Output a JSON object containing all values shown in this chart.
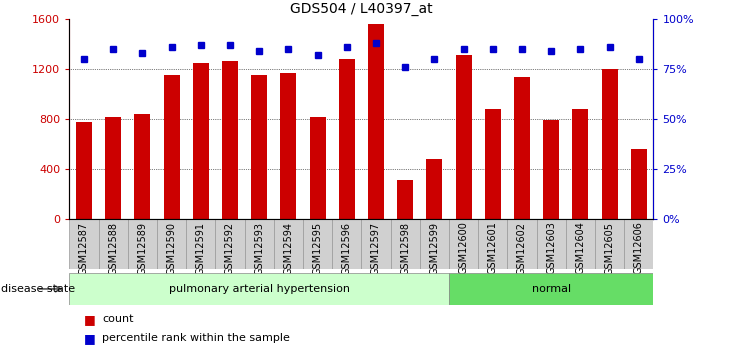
{
  "title": "GDS504 / L40397_at",
  "samples": [
    "GSM12587",
    "GSM12588",
    "GSM12589",
    "GSM12590",
    "GSM12591",
    "GSM12592",
    "GSM12593",
    "GSM12594",
    "GSM12595",
    "GSM12596",
    "GSM12597",
    "GSM12598",
    "GSM12599",
    "GSM12600",
    "GSM12601",
    "GSM12602",
    "GSM12603",
    "GSM12604",
    "GSM12605",
    "GSM12606"
  ],
  "counts": [
    780,
    820,
    840,
    1150,
    1250,
    1260,
    1150,
    1170,
    820,
    1280,
    1560,
    310,
    480,
    1310,
    880,
    1140,
    790,
    880,
    1200,
    560
  ],
  "percentile_ranks": [
    80,
    85,
    83,
    86,
    87,
    87,
    84,
    85,
    82,
    86,
    88,
    76,
    80,
    85,
    85,
    85,
    84,
    85,
    86,
    80
  ],
  "disease_groups": [
    {
      "label": "pulmonary arterial hypertension",
      "start": 0,
      "end": 13,
      "color": "#ccffcc"
    },
    {
      "label": "normal",
      "start": 13,
      "end": 20,
      "color": "#66dd66"
    }
  ],
  "bar_color": "#cc0000",
  "dot_color": "#0000cc",
  "ylim_left": [
    0,
    1600
  ],
  "ylim_right": [
    0,
    100
  ],
  "yticks_left": [
    0,
    400,
    800,
    1200,
    1600
  ],
  "yticks_right": [
    0,
    25,
    50,
    75,
    100
  ],
  "ytick_labels_left": [
    "0",
    "400",
    "800",
    "1200",
    "1600"
  ],
  "ytick_labels_right": [
    "0%",
    "25%",
    "50%",
    "75%",
    "100%"
  ],
  "grid_values": [
    400,
    800,
    1200
  ],
  "legend_count_label": "count",
  "legend_pct_label": "percentile rank within the sample",
  "disease_state_label": "disease state",
  "bg_color": "#ffffff",
  "xaxis_bg": "#d0d0d0",
  "plot_bg": "#ffffff"
}
